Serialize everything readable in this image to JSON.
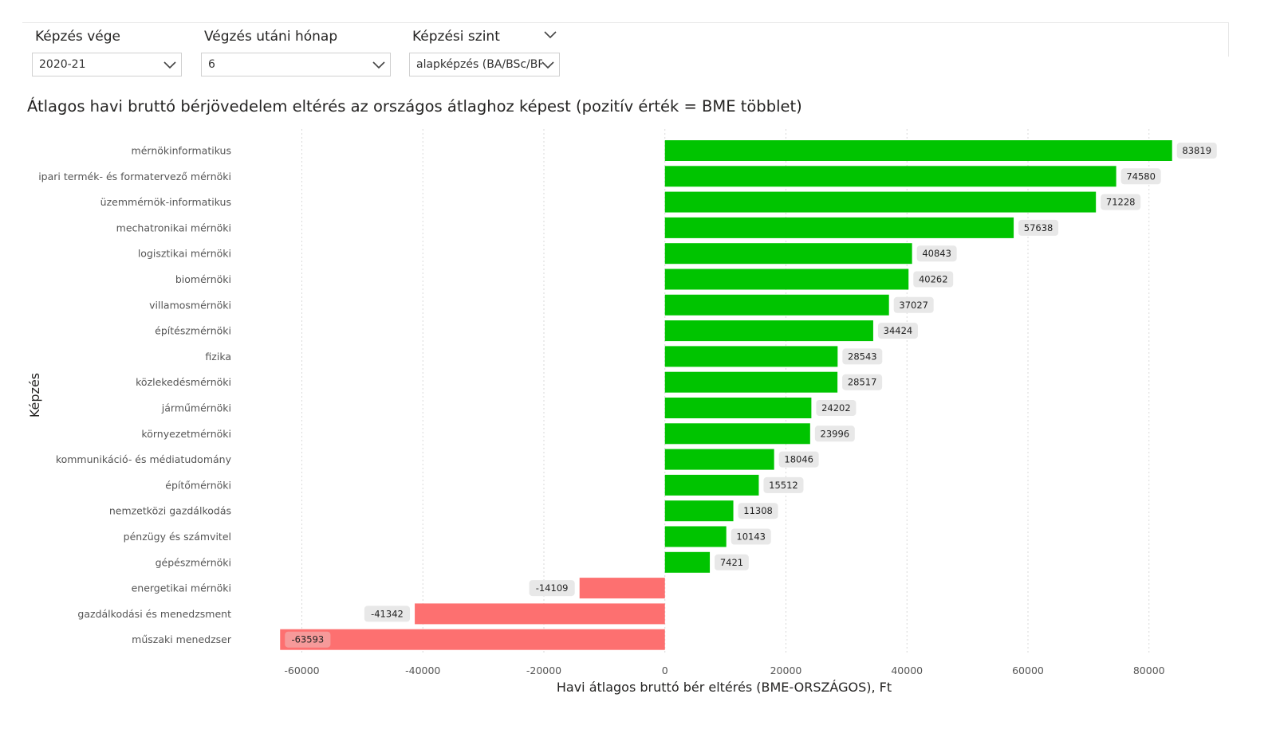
{
  "filters": {
    "training_end": {
      "title": "Képzés vége",
      "value": "2020-21"
    },
    "month_after": {
      "title": "Végzés utáni hónap",
      "value": "6"
    },
    "level": {
      "title": "Képzési szint",
      "value": "alapképzés (BA/BSc/BP..."
    }
  },
  "colors": {
    "positive": "#00c400",
    "negative": "#fd7070",
    "label_bg": "#e8e8e8",
    "grid": "#d9d9d9"
  },
  "chart_data": {
    "type": "bar",
    "orientation": "horizontal",
    "title": "Átlagos havi bruttó bérjövedelem eltérés az országos átlaghoz képest (pozitív érték = BME többlet)",
    "xlabel": "Havi átlagos bruttó bér eltérés (BME-ORSZÁGOS), Ft",
    "ylabel": "Képzés",
    "xlim": [
      -66000,
      84000
    ],
    "xticks": [
      -60000,
      -40000,
      -20000,
      0,
      20000,
      40000,
      60000,
      80000
    ],
    "categories": [
      "mérnökinformatikus",
      "ipari termék- és formatervező mérnöki",
      "üzemmérnök-informatikus",
      "mechatronikai mérnöki",
      "logisztikai mérnöki",
      "biomérnöki",
      "villamosmérnöki",
      "építészmérnöki",
      "fizika",
      "közlekedésmérnöki",
      "járműmérnöki",
      "környezetmérnöki",
      "kommunikáció- és médiatudomány",
      "építőmérnöki",
      "nemzetközi gazdálkodás",
      "pénzügy és számvitel",
      "gépészmérnöki",
      "energetikai mérnöki",
      "gazdálkodási és menedzsment",
      "műszaki menedzser"
    ],
    "values": [
      83819,
      74580,
      71228,
      57638,
      40843,
      40262,
      37027,
      34424,
      28543,
      28517,
      24202,
      23996,
      18046,
      15512,
      11308,
      10143,
      7421,
      -14109,
      -41342,
      -63593
    ]
  }
}
